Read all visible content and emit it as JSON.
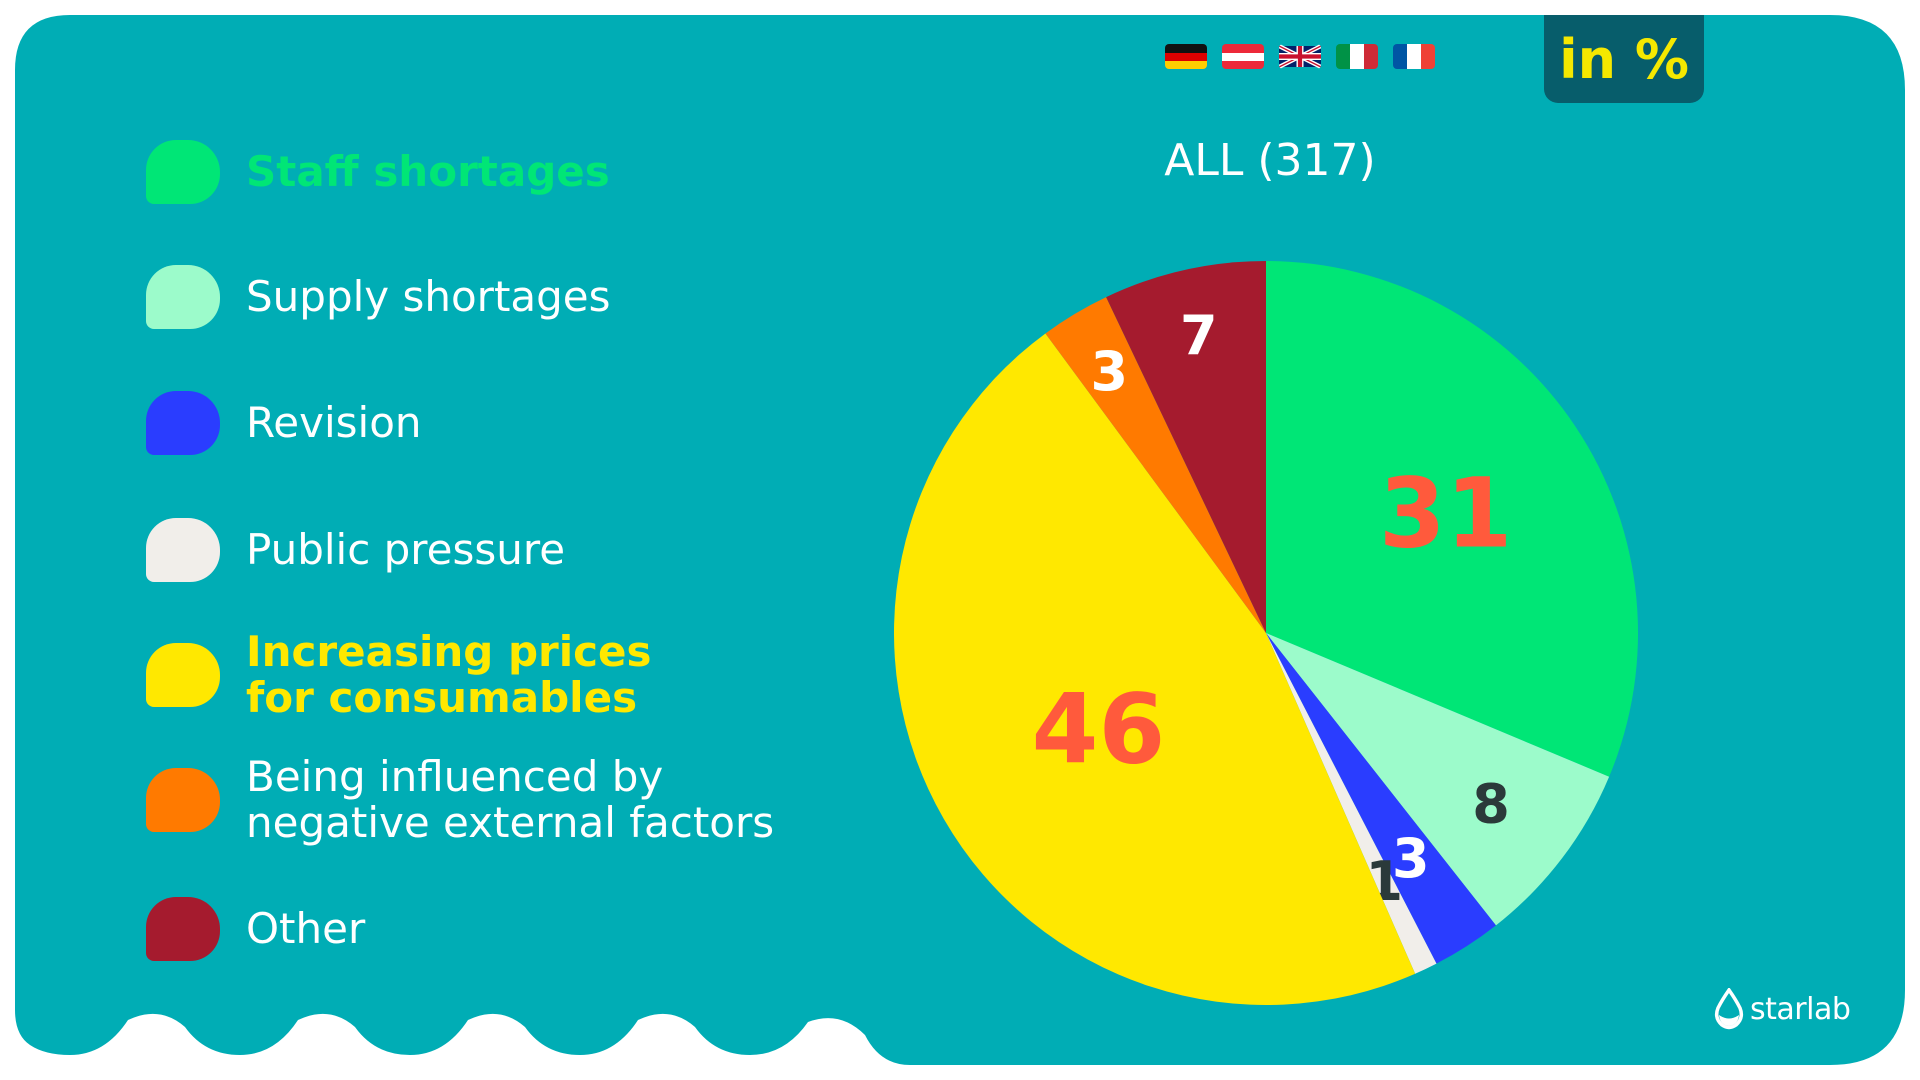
{
  "header": {
    "unit_badge": "in %",
    "flags": [
      {
        "country": "Germany",
        "icon": "germany-flag-icon"
      },
      {
        "country": "Austria",
        "icon": "austria-flag-icon"
      },
      {
        "country": "United Kingdom",
        "icon": "uk-flag-icon"
      },
      {
        "country": "Italy",
        "icon": "italy-flag-icon"
      },
      {
        "country": "France",
        "icon": "france-flag-icon"
      }
    ]
  },
  "colors": {
    "background_panel": "#00adb5",
    "badge_bg": "#075d6b",
    "badge_text": "#f5e800",
    "value_label_large": "#ff5a3c"
  },
  "legend": {
    "items": [
      {
        "label": "Staff shortages",
        "color": "#00e676",
        "text_color": "#00e676",
        "highlight": true
      },
      {
        "label": "Supply shortages",
        "color": "#9cfbcb",
        "text_color": "#ffffff",
        "highlight": false
      },
      {
        "label": "Revision",
        "color": "#2a3dff",
        "text_color": "#ffffff",
        "highlight": false
      },
      {
        "label": "Public pressure",
        "color": "#f1eeea",
        "text_color": "#ffffff",
        "highlight": false
      },
      {
        "label": "Increasing prices\nfor consumables",
        "color": "#ffe800",
        "text_color": "#ffe800",
        "highlight": true
      },
      {
        "label": "Being influenced by\nnegative external factors",
        "color": "#ff7a00",
        "text_color": "#ffffff",
        "highlight": false
      },
      {
        "label": "Other",
        "color": "#a51b2e",
        "text_color": "#ffffff",
        "highlight": false
      }
    ]
  },
  "brand": {
    "name": "starlab",
    "icon": "starlab-logo-icon"
  },
  "chart_data": {
    "type": "pie",
    "title": "ALL (317)",
    "unit": "%",
    "start_angle": "12 o'clock",
    "direction": "clockwise",
    "slices": [
      {
        "label": "Staff shortages",
        "value": 31,
        "display": "31",
        "color": "#00e676",
        "label_color": "#ff5a3c",
        "label_size": "large"
      },
      {
        "label": "Supply shortages",
        "value": 8,
        "display": "8",
        "color": "#9cfbcb",
        "label_color": "#2b3a3a",
        "label_size": "small"
      },
      {
        "label": "Revision",
        "value": 3,
        "display": "3",
        "color": "#2a3dff",
        "label_color": "#ffffff",
        "label_size": "small"
      },
      {
        "label": "Public pressure",
        "value": 1,
        "display": "1",
        "color": "#f1eeea",
        "label_color": "#2b3a3a",
        "label_size": "small"
      },
      {
        "label": "Increasing prices for consumables",
        "value": 46,
        "display": "46",
        "color": "#ffe800",
        "label_color": "#ff5a3c",
        "label_size": "large"
      },
      {
        "label": "Being influenced by negative external factors",
        "value": 3,
        "display": "3",
        "color": "#ff7a00",
        "label_color": "#ffffff",
        "label_size": "small"
      },
      {
        "label": "Other",
        "value": 7,
        "display": "7",
        "color": "#a51b2e",
        "label_color": "#ffffff",
        "label_size": "small"
      }
    ]
  }
}
